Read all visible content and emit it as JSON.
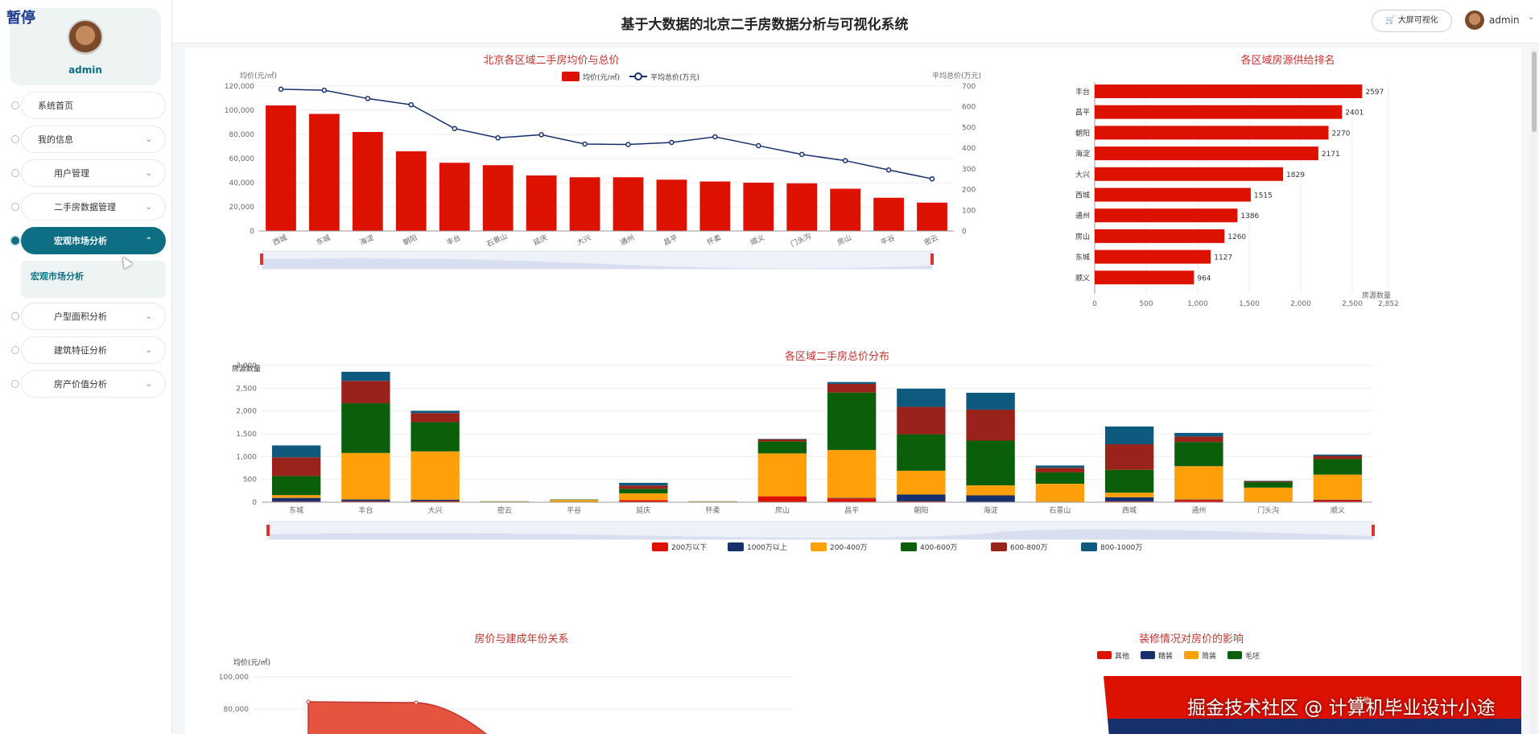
{
  "corner_tag": "暂停",
  "user": {
    "name": "admin"
  },
  "header": {
    "title": "基于大数据的北京二手房数据分析与可视化系统",
    "bigscreen_label": "大屏可视化",
    "username": "admin"
  },
  "menu": [
    {
      "label": "系统首页",
      "expandable": false,
      "active": false
    },
    {
      "label": "我的信息",
      "expandable": true,
      "active": false
    },
    {
      "label": "用户管理",
      "expandable": true,
      "active": false
    },
    {
      "label": "二手房数据管理",
      "expandable": true,
      "active": false
    },
    {
      "label": "宏观市场分析",
      "expandable": true,
      "active": true,
      "sub": [
        "宏观市场分析"
      ]
    },
    {
      "label": "户型面积分析",
      "expandable": true,
      "active": false
    },
    {
      "label": "建筑特征分析",
      "expandable": true,
      "active": false
    },
    {
      "label": "房产价值分析",
      "expandable": true,
      "active": false
    }
  ],
  "watermark": "掘金技术社区 @ 计算机毕业设计小途",
  "colors": {
    "red": "#dd1100",
    "navy": "#15306b",
    "orange": "#ffa00a",
    "green": "#0b5f0b",
    "brown": "#99231a",
    "teal": "#0e5a7e",
    "sidebar_accent": "#0e6f84"
  },
  "chart_data": [
    {
      "type": "bar",
      "title": "北京各区域二手房均价与总价",
      "categories": [
        "西城",
        "东城",
        "海淀",
        "朝阳",
        "丰台",
        "石景山",
        "延庆",
        "大兴",
        "通州",
        "昌平",
        "怀柔",
        "顺义",
        "门头沟",
        "房山",
        "平谷",
        "密云"
      ],
      "series": [
        {
          "name": "均价(元/㎡)",
          "type": "bar",
          "values": [
            104000,
            97000,
            82000,
            66000,
            56500,
            54500,
            46000,
            44500,
            44500,
            42500,
            41000,
            40000,
            39500,
            35000,
            27500,
            23500
          ]
        },
        {
          "name": "平均总价(万元)",
          "type": "line",
          "values": [
            685,
            680,
            640,
            610,
            495,
            450,
            465,
            420,
            418,
            428,
            455,
            412,
            370,
            340,
            295,
            252
          ]
        }
      ],
      "ylabel": "均价(元/㎡)",
      "ylim": [
        0,
        120000
      ],
      "yticks": [
        "0",
        "20,000",
        "40,000",
        "60,000",
        "80,000",
        "100,000",
        "120,000"
      ],
      "y2label": "平均总价(万元)",
      "y2lim": [
        0,
        700
      ],
      "y2ticks": [
        "0",
        "100",
        "200",
        "300",
        "400",
        "500",
        "600",
        "700"
      ],
      "legend": "top-center",
      "grid": true
    },
    {
      "type": "bar",
      "orientation": "horizontal",
      "title": "各区域房源供给排名",
      "categories": [
        "丰台",
        "昌平",
        "朝阳",
        "海淀",
        "大兴",
        "西城",
        "通州",
        "房山",
        "东城",
        "顺义"
      ],
      "values": [
        2597,
        2401,
        2270,
        2171,
        1829,
        1515,
        1386,
        1260,
        1127,
        964
      ],
      "xlabel": "房源数量",
      "xlim": [
        0,
        2852
      ],
      "xticks": [
        "0",
        "500",
        "1,000",
        "1,500",
        "2,000",
        "2,500",
        "2,852"
      ]
    },
    {
      "type": "bar",
      "stacked": true,
      "title": "各区域二手房总价分布",
      "categories": [
        "东城",
        "丰台",
        "大兴",
        "密云",
        "平谷",
        "延庆",
        "怀柔",
        "房山",
        "昌平",
        "朝阳",
        "海淀",
        "石景山",
        "西城",
        "通州",
        "门头沟",
        "顺义"
      ],
      "series": [
        {
          "name": "200万以下",
          "values": [
            15,
            20,
            25,
            5,
            10,
            45,
            5,
            130,
            85,
            20,
            10,
            5,
            20,
            50,
            10,
            45
          ]
        },
        {
          "name": "1000万以上",
          "values": [
            80,
            40,
            30,
            0,
            0,
            0,
            0,
            0,
            10,
            150,
            140,
            0,
            90,
            10,
            0,
            10
          ]
        },
        {
          "name": "200-400万",
          "values": [
            60,
            1020,
            1060,
            10,
            40,
            150,
            10,
            940,
            1050,
            520,
            220,
            400,
            100,
            730,
            310,
            550
          ]
        },
        {
          "name": "400-600万",
          "values": [
            420,
            1090,
            640,
            5,
            10,
            100,
            5,
            260,
            1260,
            800,
            980,
            250,
            500,
            530,
            120,
            340
          ]
        },
        {
          "name": "600-800万",
          "values": [
            410,
            490,
            200,
            0,
            0,
            70,
            0,
            50,
            190,
            600,
            680,
            100,
            560,
            120,
            20,
            70
          ]
        },
        {
          "name": "800-1000万",
          "values": [
            260,
            200,
            50,
            0,
            0,
            60,
            0,
            10,
            40,
            400,
            370,
            50,
            390,
            80,
            10,
            30
          ]
        }
      ],
      "ylabel": "房源数量",
      "ylim": [
        0,
        3000
      ],
      "yticks": [
        "0",
        "500",
        "1,000",
        "1,500",
        "2,000",
        "2,500",
        "3,000"
      ],
      "legend": "bottom-center"
    },
    {
      "type": "area",
      "title": "房价与建成年份关系",
      "ylabel": "均价(元/㎡)",
      "yticks": [
        "80,000",
        "100,000"
      ],
      "y": [
        84500,
        84000,
        83000,
        78000
      ]
    },
    {
      "type": "funnel",
      "title": "装修情况对房价的影响",
      "legend": [
        "其他",
        "精装",
        "简装",
        "毛坯"
      ],
      "labels": [
        "其他"
      ]
    }
  ]
}
